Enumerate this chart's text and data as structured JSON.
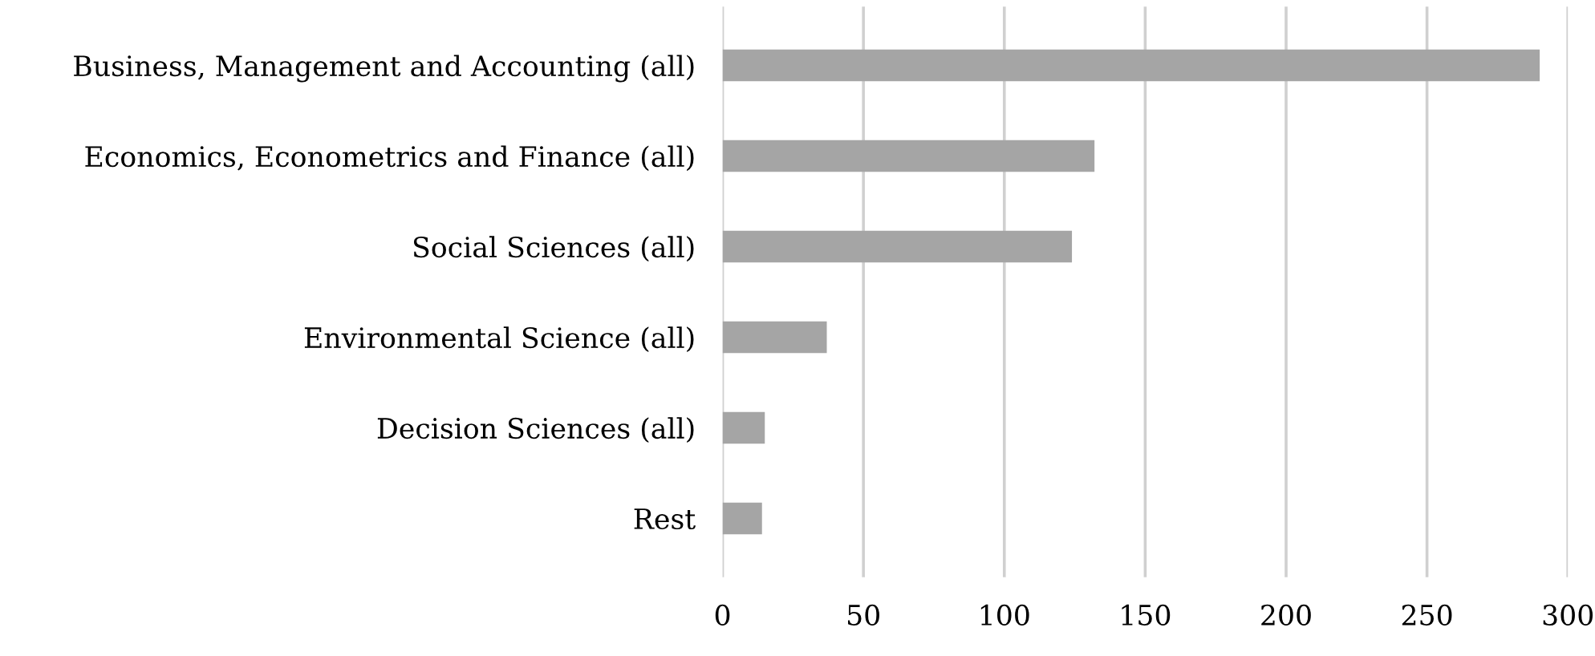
{
  "chart_data": {
    "type": "bar",
    "orientation": "horizontal",
    "categories": [
      "Business, Management and Accounting (all)",
      "Economics, Econometrics and Finance (all)",
      "Social Sciences (all)",
      "Environmental Science (all)",
      "Decision Sciences (all)",
      "Rest"
    ],
    "values": [
      290,
      132,
      124,
      37,
      15,
      14
    ],
    "color": "#a5a5a5",
    "xlim": [
      0,
      300
    ],
    "xticks": [
      0,
      50,
      100,
      150,
      200,
      250,
      300
    ],
    "grid": "x"
  }
}
